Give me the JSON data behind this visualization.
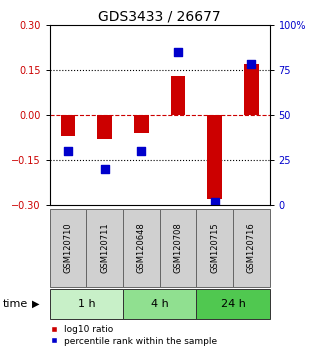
{
  "title": "GDS3433 / 26677",
  "samples": [
    "GSM120710",
    "GSM120711",
    "GSM120648",
    "GSM120708",
    "GSM120715",
    "GSM120716"
  ],
  "log10_ratio": [
    -0.07,
    -0.08,
    -0.06,
    0.13,
    -0.28,
    0.17
  ],
  "percentile_rank": [
    30,
    20,
    30,
    85,
    2,
    78
  ],
  "groups": [
    {
      "label": "1 h",
      "start": 0,
      "end": 2,
      "color": "#c8f0c8"
    },
    {
      "label": "4 h",
      "start": 2,
      "end": 4,
      "color": "#90e090"
    },
    {
      "label": "24 h",
      "start": 4,
      "end": 6,
      "color": "#50c850"
    }
  ],
  "ylim": [
    -0.3,
    0.3
  ],
  "yticks_left": [
    -0.3,
    -0.15,
    0,
    0.15,
    0.3
  ],
  "yticks_right": [
    0,
    25,
    50,
    75,
    100
  ],
  "bar_color": "#cc0000",
  "dot_color": "#0000cc",
  "hline_color": "#cc0000",
  "dotted_color": "#000000",
  "bar_width": 0.4,
  "dot_size": 35,
  "background_color": "#ffffff",
  "plot_bg_color": "#ffffff",
  "legend_labels": [
    "log10 ratio",
    "percentile rank within the sample"
  ],
  "legend_colors": [
    "#cc0000",
    "#0000cc"
  ],
  "title_fontsize": 10,
  "tick_fontsize": 7,
  "sample_fontsize": 6,
  "group_label_fontsize": 8,
  "time_label_fontsize": 8,
  "label_bg": "#d0d0d0",
  "label_edge": "#666666"
}
